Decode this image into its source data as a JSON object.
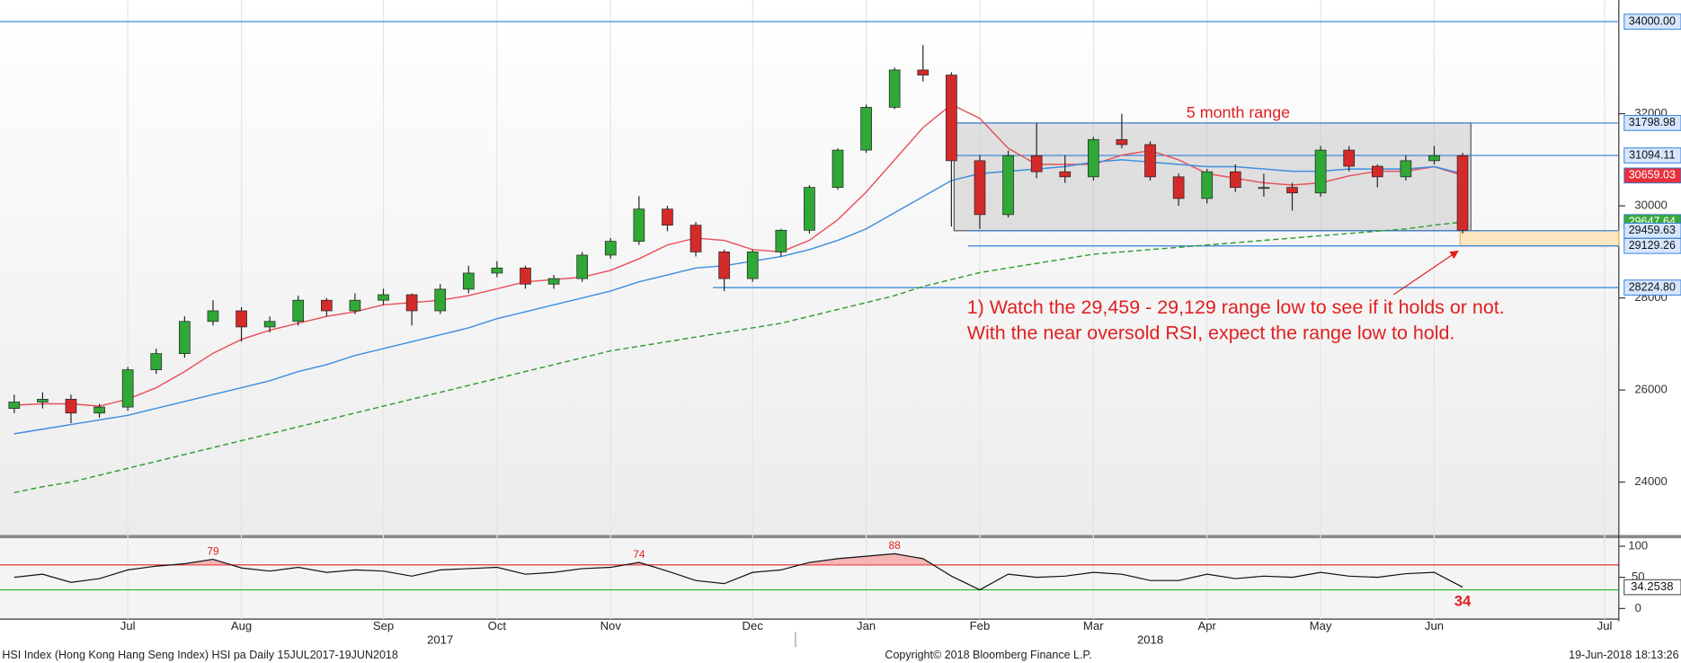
{
  "chart_data": [
    {
      "type": "candlestick",
      "categories": [
        null,
        null,
        null,
        null,
        "Jul",
        null,
        null,
        null,
        "Aug",
        null,
        null,
        null,
        null,
        "Sep",
        null,
        null,
        null,
        "Oct",
        null,
        null,
        null,
        "Nov",
        null,
        null,
        null,
        null,
        "Dec",
        null,
        null,
        null,
        "Jan",
        null,
        null,
        null,
        "Feb",
        null,
        null,
        null,
        "Mar",
        null,
        null,
        null,
        "Apr",
        null,
        null,
        null,
        "May",
        null,
        null,
        null,
        "Jun",
        null,
        null,
        null,
        null,
        null,
        "Jul"
      ],
      "years": [
        "2017",
        "2018"
      ],
      "open": [
        25600,
        25740,
        25800,
        25500,
        25630,
        26440,
        26790,
        27490,
        27720,
        27370,
        27490,
        27950,
        27720,
        27950,
        28070,
        27720,
        28190,
        28540,
        28650,
        28300,
        28420,
        28930,
        29230,
        29930,
        29580,
        29000,
        28420,
        29000,
        29470,
        30400,
        31210,
        32140,
        32950,
        32840,
        30980,
        29810,
        31090,
        30740,
        30630,
        31440,
        31330,
        30630,
        30160,
        30740,
        30400,
        30400,
        30280,
        31210,
        30860,
        30630,
        30980,
        31090,
        null,
        null,
        null,
        null,
        null
      ],
      "high": [
        25900,
        25950,
        25900,
        25700,
        26500,
        26900,
        27600,
        27950,
        27800,
        27600,
        28050,
        28000,
        28100,
        28200,
        28100,
        28300,
        28700,
        28800,
        28700,
        28500,
        29000,
        29300,
        30210,
        30000,
        29650,
        29050,
        29050,
        29500,
        30450,
        31250,
        32200,
        33000,
        33490,
        32900,
        31100,
        31200,
        31800,
        31100,
        31500,
        32000,
        31400,
        30700,
        30800,
        30900,
        30700,
        30500,
        31300,
        31300,
        30900,
        31100,
        31300,
        31150,
        null,
        null,
        null,
        null,
        null
      ],
      "low": [
        25500,
        25600,
        25280,
        25400,
        25550,
        26350,
        26700,
        27400,
        27050,
        27250,
        27400,
        27600,
        27650,
        27850,
        27400,
        27650,
        28100,
        28450,
        28200,
        28200,
        28350,
        28850,
        29150,
        29450,
        28900,
        28150,
        28350,
        28900,
        29400,
        30350,
        31150,
        32100,
        32700,
        29550,
        29500,
        29750,
        30600,
        30500,
        30550,
        31250,
        30550,
        30000,
        30050,
        30300,
        30200,
        29900,
        30200,
        30750,
        30400,
        30550,
        30900,
        29400,
        null,
        null,
        null,
        null,
        null
      ],
      "close": [
        25740,
        25800,
        25500,
        25630,
        26440,
        26790,
        27490,
        27720,
        27370,
        27490,
        27950,
        27720,
        27950,
        28070,
        27720,
        28190,
        28540,
        28650,
        28300,
        28420,
        28930,
        29230,
        29930,
        29580,
        29000,
        28420,
        29000,
        29470,
        30400,
        31210,
        32140,
        32950,
        32840,
        30980,
        29810,
        31090,
        30740,
        30630,
        31440,
        31330,
        30630,
        30160,
        30740,
        30400,
        30400,
        30280,
        31210,
        30860,
        30630,
        30980,
        31090,
        29470,
        null,
        null,
        null,
        null,
        null
      ],
      "up_color": "#2fa836",
      "down_color": "#d42a2a",
      "overlays": [
        {
          "color": "#e8505a",
          "style": "solid",
          "values": [
            25670,
            25700,
            25700,
            25650,
            25800,
            26050,
            26400,
            26800,
            27100,
            27300,
            27450,
            27600,
            27700,
            27850,
            27900,
            27950,
            28050,
            28200,
            28350,
            28400,
            28450,
            28600,
            28850,
            29150,
            29300,
            29250,
            29050,
            29000,
            29250,
            29700,
            30300,
            31000,
            31700,
            32200,
            31900,
            31250,
            30900,
            30900,
            30900,
            31100,
            31200,
            31000,
            30700,
            30600,
            30500,
            30450,
            30500,
            30650,
            30750,
            30750,
            30850,
            30659.03,
            null,
            null,
            null,
            null,
            null
          ],
          "last_label": "30659.03",
          "label_fill": "#e8303a"
        },
        {
          "color": "#3d8ee0",
          "style": "solid",
          "values": [
            25050,
            25150,
            25250,
            25350,
            25450,
            25600,
            25750,
            25900,
            26050,
            26200,
            26400,
            26550,
            26750,
            26900,
            27050,
            27200,
            27350,
            27550,
            27700,
            27850,
            28000,
            28150,
            28350,
            28500,
            28650,
            28700,
            28800,
            28900,
            29050,
            29250,
            29500,
            29850,
            30200,
            30550,
            30700,
            30750,
            30800,
            30850,
            30950,
            31000,
            30950,
            30900,
            30850,
            30850,
            30800,
            30750,
            30750,
            30800,
            30800,
            30800,
            30850,
            30700,
            null,
            null,
            null,
            null,
            null
          ]
        },
        {
          "color": "#2e9a2e",
          "style": "dashed",
          "values": [
            23770,
            23900,
            24000,
            24150,
            24300,
            24450,
            24600,
            24750,
            24900,
            25050,
            25200,
            25350,
            25500,
            25650,
            25800,
            25950,
            26100,
            26250,
            26400,
            26550,
            26700,
            26850,
            26950,
            27050,
            27150,
            27250,
            27350,
            27450,
            27600,
            27750,
            27900,
            28050,
            28250,
            28400,
            28550,
            28650,
            28750,
            28850,
            28950,
            29000,
            29050,
            29100,
            29150,
            29200,
            29250,
            29300,
            29350,
            29400,
            29450,
            29500,
            29580,
            29647.64,
            null,
            null,
            null,
            null,
            null
          ],
          "last_label": "29647.64",
          "label_fill": "#3aa83a"
        }
      ],
      "levels": [
        {
          "value": 34000,
          "label": "34000.00"
        },
        {
          "value": 31798.98,
          "label": "31798.98"
        },
        {
          "value": 31094.11,
          "label": "31094.11"
        },
        {
          "value": 29459.63,
          "label": "29459.63"
        },
        {
          "value": 29129.26,
          "label": "29129.26"
        },
        {
          "value": 28224.8,
          "label": "28224.80"
        }
      ],
      "range_label": "5 month range",
      "annotation": [
        "1) Watch the 29,459 - 29,129 range low to see if it holds or not.",
        "With the near oversold RSI, expect the range low to hold."
      ],
      "ylim": [
        22840,
        34470
      ],
      "yticks": [
        24000,
        26000,
        28000,
        30000,
        32000
      ]
    },
    {
      "type": "line",
      "values": [
        50,
        55,
        42,
        48,
        62,
        68,
        72,
        79,
        65,
        60,
        66,
        58,
        62,
        60,
        52,
        62,
        64,
        66,
        55,
        58,
        64,
        66,
        74,
        60,
        45,
        40,
        58,
        62,
        74,
        80,
        84,
        88,
        80,
        52,
        30,
        55,
        50,
        52,
        58,
        55,
        45,
        45,
        55,
        48,
        52,
        50,
        58,
        52,
        50,
        56,
        58,
        34.2538,
        null,
        null,
        null,
        null,
        null
      ],
      "value_labels": [
        null,
        null,
        null,
        null,
        null,
        null,
        null,
        "79",
        null,
        null,
        null,
        null,
        null,
        null,
        null,
        null,
        null,
        null,
        null,
        null,
        null,
        null,
        "74",
        null,
        null,
        null,
        null,
        null,
        null,
        null,
        null,
        "88",
        null,
        null,
        null,
        null,
        null,
        null,
        null,
        null,
        null,
        null,
        null,
        null,
        null,
        null,
        null,
        null,
        null,
        null,
        null,
        "34.2538",
        null,
        null,
        null,
        null,
        null
      ],
      "current_text": "34",
      "color": "#111111",
      "thresholds": [
        {
          "value": 70,
          "color": "#e02020"
        },
        {
          "value": 30,
          "color": "#22b422"
        }
      ],
      "ylim": [
        -17,
        112
      ],
      "yticks": [
        0,
        50,
        100
      ]
    }
  ],
  "footer": {
    "left": "HSI Index (Hong Kong Hang Seng Index) HSI pa  Daily 15JUL2017-19JUN2018",
    "center": "Copyright© 2018 Bloomberg Finance L.P.",
    "right": "19-Jun-2018 18:13:26"
  }
}
